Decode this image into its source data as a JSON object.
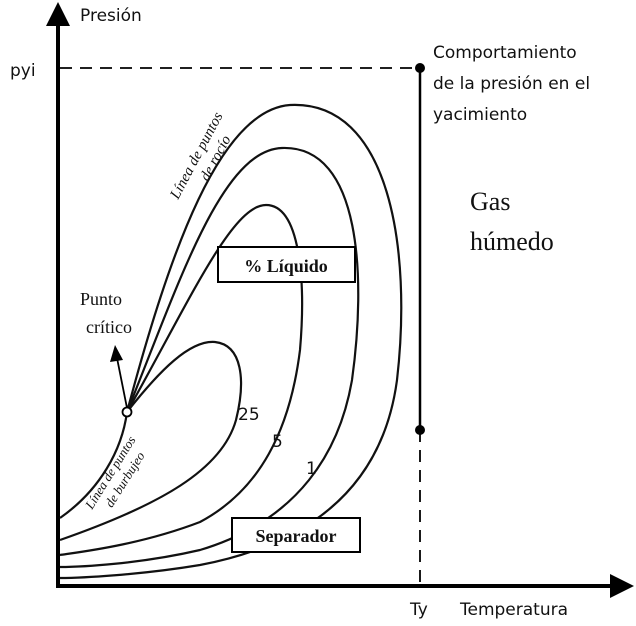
{
  "axes": {
    "y_label": "Presión",
    "x_label": "Temperatura",
    "y_marker": "pyi",
    "x_marker": "Ty"
  },
  "annotations": {
    "reservoir_path": [
      "Comportamiento",
      "de la presión en el",
      "yacimiento"
    ],
    "fluid_type": [
      "Gas",
      "húmedo"
    ],
    "dew_line": [
      "Línea de puntos",
      "de rocío"
    ],
    "liquid_box": "% Líquido",
    "critical_point": [
      "Punto",
      "crítico"
    ],
    "bubble_line": [
      "Línea de puntos",
      "de burbujeo"
    ],
    "quality_lines": [
      "25",
      "5",
      "1"
    ],
    "separator_box": "Separador"
  }
}
